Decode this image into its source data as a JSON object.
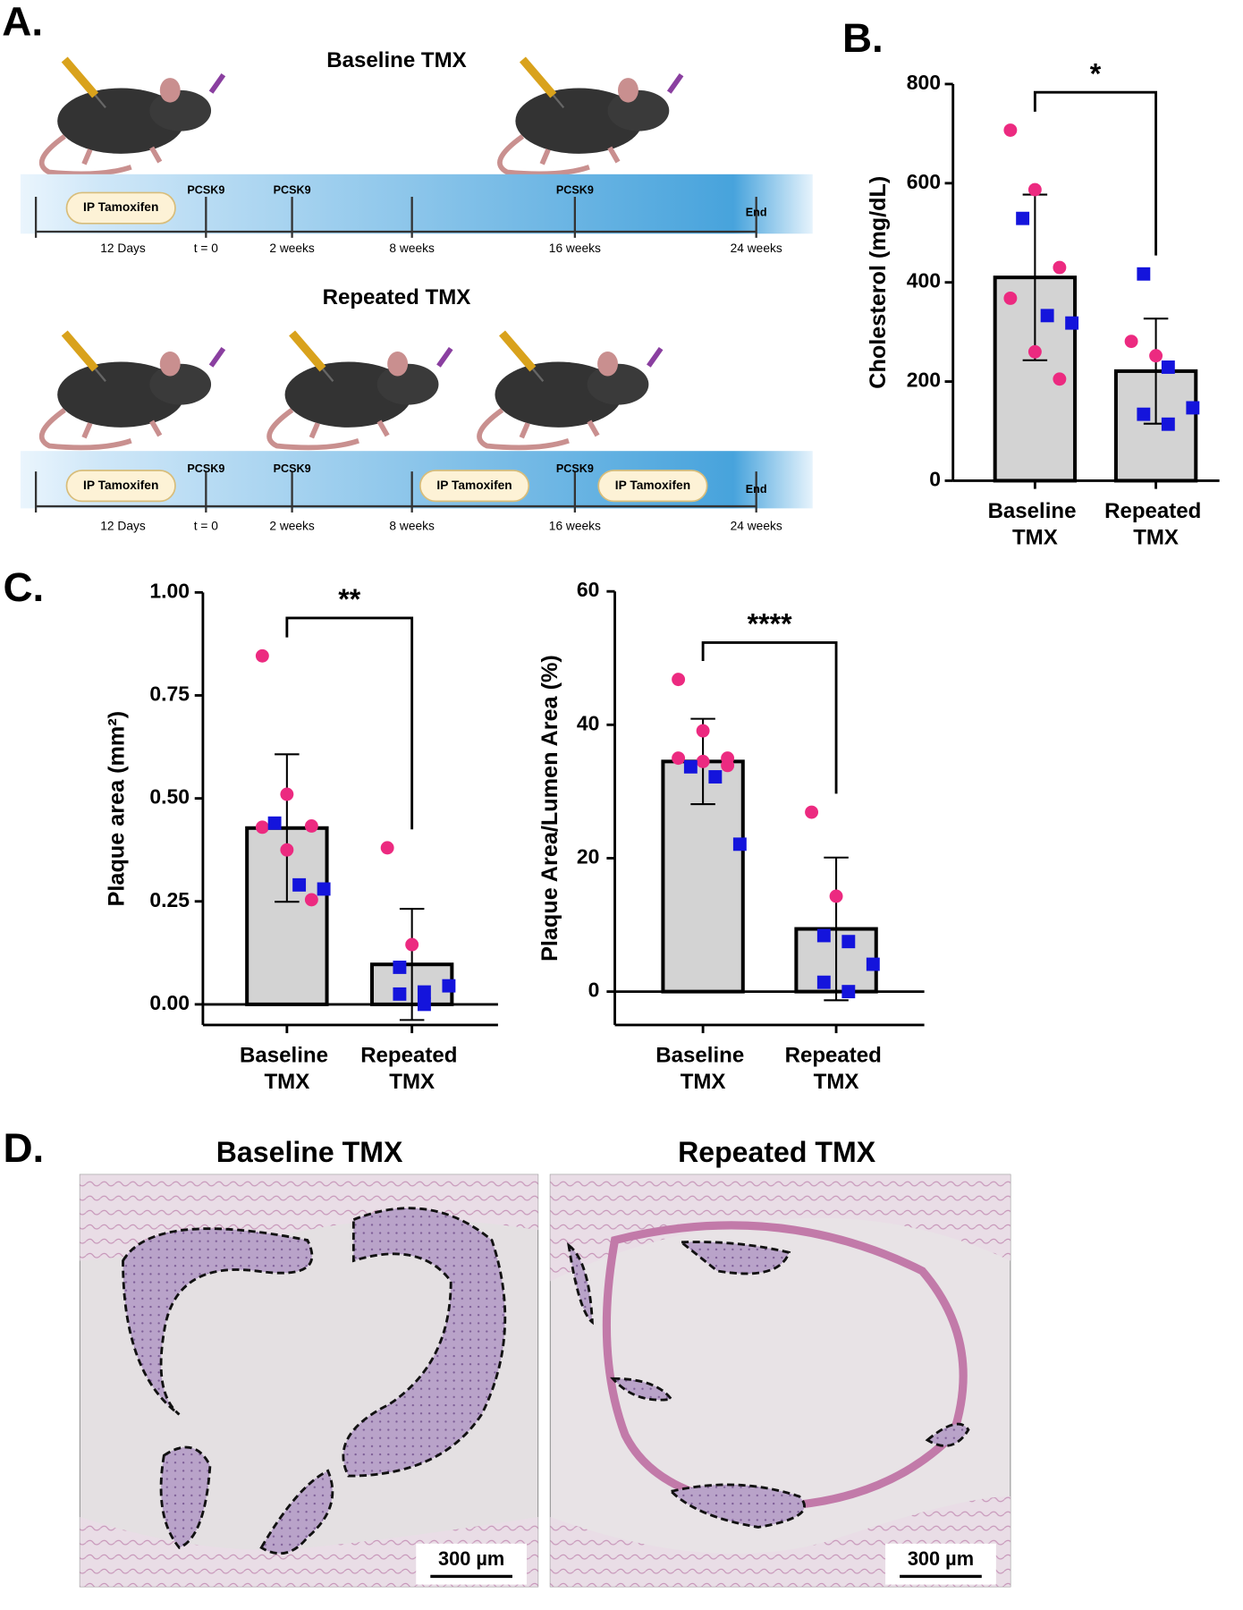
{
  "panel_labels": [
    "A.",
    "B.",
    "C.",
    "D."
  ],
  "timelines": [
    {
      "title": "Baseline TMX",
      "ticks": [
        "12 Days",
        "t = 0",
        "2 weeks",
        "8 weeks",
        "16 weeks",
        "24 weeks"
      ],
      "markers": [
        "PCSK9",
        "PCSK9",
        "PCSK9",
        "End"
      ],
      "pills": [
        "IP Tamoxifen"
      ]
    },
    {
      "title": "Repeated TMX",
      "ticks": [
        "12 Days",
        "t = 0",
        "2 weeks",
        "8 weeks",
        "16 weeks",
        "24 weeks"
      ],
      "markers": [
        "PCSK9",
        "PCSK9",
        "PCSK9",
        "End"
      ],
      "pills": [
        "IP Tamoxifen",
        "IP Tamoxifen",
        "IP Tamoxifen"
      ]
    }
  ],
  "chart_data": [
    {
      "type": "bar",
      "ylabel": "Cholesterol (mg/dL)",
      "categories": [
        "Baseline TMX",
        "Repeated TMX"
      ],
      "values": [
        410,
        221
      ],
      "errors": [
        167,
        106
      ],
      "color": "#d3d3d3",
      "points": [
        {
          "color": "#ec2a80",
          "values": [
            [
              707,
              587,
              430,
              368,
              260,
              205
            ],
            [
              281,
              252
            ]
          ]
        },
        {
          "color": "#1414dc",
          "values": [
            [
              529,
              333,
              318
            ],
            [
              417,
              229,
              147,
              134,
              114
            ]
          ]
        }
      ],
      "ylim": [
        0,
        800
      ],
      "yticks": [
        0,
        200,
        400,
        600,
        800
      ],
      "significance": "*"
    },
    {
      "type": "bar",
      "ylabel": "Plaque area (mm²)",
      "categories": [
        "Baseline TMX",
        "Repeated TMX"
      ],
      "values": [
        0.428,
        0.097
      ],
      "errors": [
        0.179,
        0.135
      ],
      "color": "#d3d3d3",
      "points": [
        {
          "color": "#ec2a80",
          "values": [
            [
              0.846,
              0.51,
              0.433,
              0.43,
              0.375,
              0.254
            ],
            [
              0.38,
              0.145
            ]
          ]
        },
        {
          "color": "#1414dc",
          "values": [
            [
              0.44,
              0.29,
              0.28
            ],
            [
              0.09,
              0.03,
              0.045,
              0.025,
              0.0
            ]
          ]
        }
      ],
      "ylim": [
        -0.05,
        1.0
      ],
      "yticks": [
        {
          "value": 0,
          "label": "0.00"
        },
        {
          "value": 0.25,
          "label": "0.25"
        },
        {
          "value": 0.5,
          "label": "0.50"
        },
        {
          "value": 0.75,
          "label": "0.75"
        },
        {
          "value": 1,
          "label": "1.00"
        }
      ],
      "significance": "**"
    },
    {
      "type": "bar",
      "ylabel": "Plaque Area/Lumen Area (%)",
      "categories": [
        "Baseline TMX",
        "Repeated TMX"
      ],
      "values": [
        34.5,
        9.4
      ],
      "errors": [
        6.4,
        10.7
      ],
      "color": "#d3d3d3",
      "points": [
        {
          "color": "#ec2a80",
          "values": [
            [
              46.8,
              39.1,
              35,
              35,
              34.5,
              33.9
            ],
            [
              26.9,
              14.3
            ]
          ]
        },
        {
          "color": "#1414dc",
          "values": [
            [
              33.7,
              32.2,
              22.1
            ],
            [
              8.4,
              7.5,
              4.1,
              1.4,
              0
            ]
          ]
        }
      ],
      "ylim": [
        -5,
        60
      ],
      "yticks": [
        0,
        20,
        40,
        60
      ],
      "significance": "****"
    }
  ],
  "histology": {
    "titles": [
      "Baseline TMX",
      "Repeated TMX"
    ],
    "scale_bars": [
      "300 µm",
      "300 µm"
    ]
  }
}
